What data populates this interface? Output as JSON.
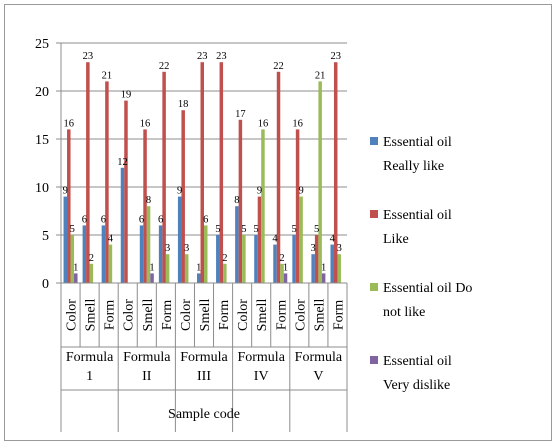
{
  "chart_data": {
    "type": "bar",
    "title": "",
    "xlabel": "Sample code",
    "ylabel": "",
    "ylim": [
      0,
      25
    ],
    "yticks": [
      0,
      5,
      10,
      15,
      20,
      25
    ],
    "grid": true,
    "legend_position": "right",
    "groups": [
      {
        "label_lines": [
          "Formula",
          "1"
        ],
        "categories": [
          "Color",
          "Smell",
          "Form"
        ]
      },
      {
        "label_lines": [
          "Formula",
          "II"
        ],
        "categories": [
          "Color",
          "Smell",
          "Form"
        ]
      },
      {
        "label_lines": [
          "Formula",
          "III"
        ],
        "categories": [
          "Color",
          "Smell",
          "Form"
        ]
      },
      {
        "label_lines": [
          "Formula",
          "IV"
        ],
        "categories": [
          "Color",
          "Smell",
          "Form"
        ]
      },
      {
        "label_lines": [
          "Formula",
          "V"
        ],
        "categories": [
          "Color",
          "Smell",
          "Form"
        ]
      }
    ],
    "series": [
      {
        "name": "Essential oil Really like",
        "legend_lines": [
          "Essential oil",
          "Really like"
        ],
        "color": "#4f81bd",
        "values": [
          9,
          6,
          6,
          12,
          6,
          6,
          9,
          1,
          5,
          8,
          5,
          4,
          5,
          3,
          4
        ]
      },
      {
        "name": "Essential oil Like",
        "legend_lines": [
          "Essential oil",
          "Like"
        ],
        "color": "#c0504d",
        "values": [
          16,
          23,
          21,
          19,
          16,
          22,
          18,
          23,
          23,
          17,
          9,
          22,
          16,
          5,
          23
        ]
      },
      {
        "name": "Essential oil Do not like",
        "legend_lines": [
          "Essential oil Do",
          "not like"
        ],
        "color": "#9bbb59",
        "values": [
          5,
          2,
          4,
          0,
          8,
          3,
          3,
          6,
          2,
          5,
          16,
          2,
          9,
          21,
          3
        ]
      },
      {
        "name": "Essential oil Very dislike",
        "legend_lines": [
          "Essential oil",
          "Very dislike"
        ],
        "color": "#8064a2",
        "values": [
          1,
          0,
          0,
          0,
          1,
          0,
          0,
          0,
          0,
          0,
          0,
          1,
          0,
          1,
          0
        ]
      }
    ]
  }
}
